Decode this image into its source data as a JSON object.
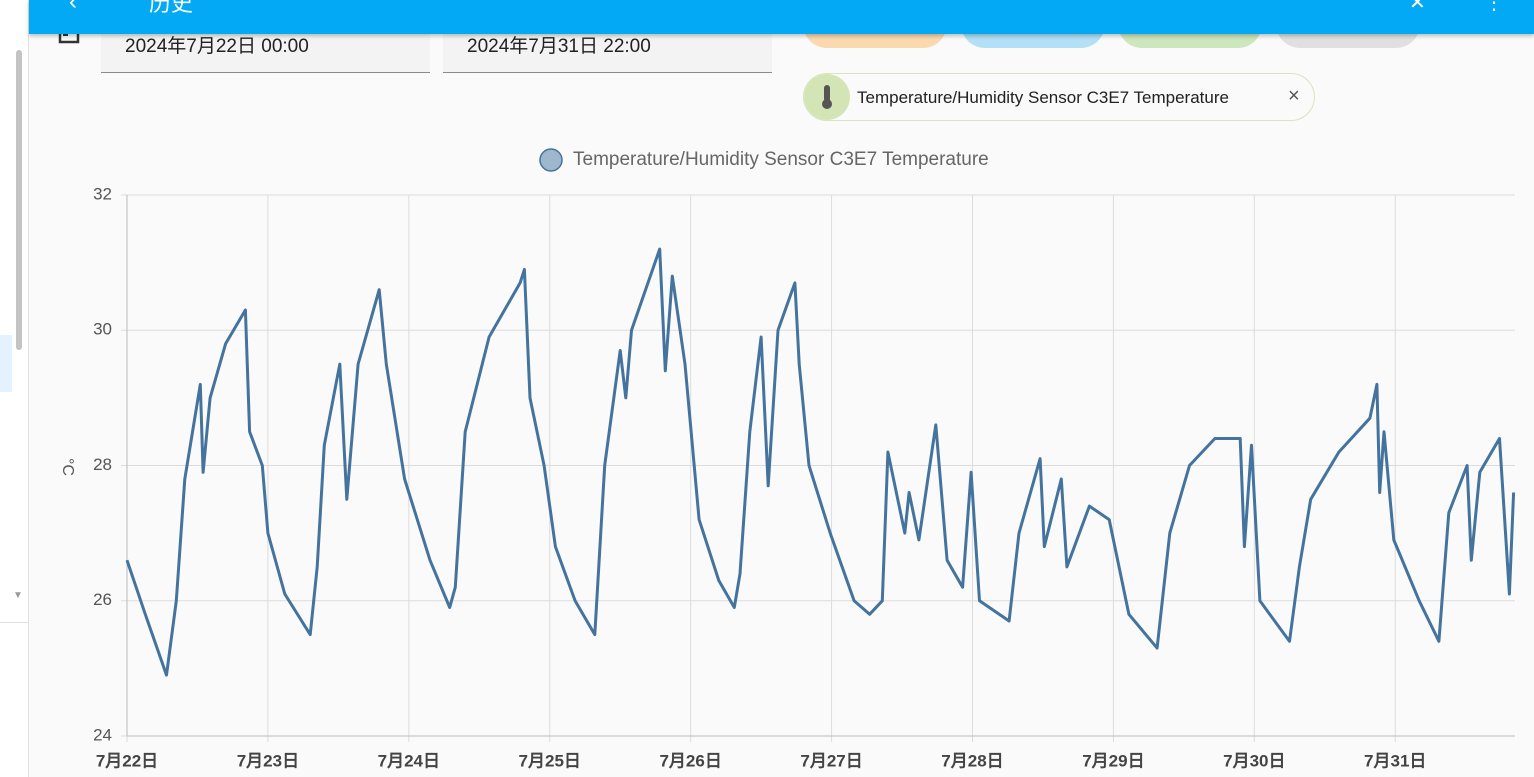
{
  "header": {
    "title": "历史"
  },
  "date_range": {
    "start": "2024年7月22日 00:00",
    "end": "2024年7月31日 22:00"
  },
  "entity_chip": {
    "label": "Temperature/Humidity Sensor C3E7 Temperature"
  },
  "chart_data": {
    "type": "line",
    "y_label": "°C",
    "x": [
      0,
      0.13,
      0.28,
      0.35,
      0.41,
      0.52,
      0.54,
      0.59,
      0.7,
      0.84,
      0.87,
      0.96,
      1.0,
      1.12,
      1.3,
      1.35,
      1.4,
      1.51,
      1.56,
      1.64,
      1.79,
      1.84,
      1.97,
      2.15,
      2.29,
      2.33,
      2.4,
      2.57,
      2.79,
      2.82,
      2.86,
      2.96,
      3.04,
      3.18,
      3.32,
      3.39,
      3.5,
      3.54,
      3.58,
      3.78,
      3.82,
      3.87,
      3.96,
      4.06,
      4.2,
      4.31,
      4.35,
      4.42,
      4.5,
      4.55,
      4.62,
      4.74,
      4.77,
      4.84,
      4.99,
      5.16,
      5.27,
      5.36,
      5.4,
      5.52,
      5.55,
      5.62,
      5.74,
      5.82,
      5.93,
      5.99,
      6.05,
      6.26,
      6.33,
      6.48,
      6.51,
      6.63,
      6.67,
      6.83,
      6.97,
      7.11,
      7.31,
      7.4,
      7.54,
      7.72,
      7.9,
      7.93,
      7.98,
      8.04,
      8.25,
      8.32,
      8.4,
      8.6,
      8.82,
      8.87,
      8.89,
      8.92,
      8.99,
      9.17,
      9.31,
      9.38,
      9.51,
      9.54,
      9.6,
      9.74,
      9.81,
      9.84
    ],
    "series": [
      {
        "name": "Temperature/Humidity Sensor C3E7 Temperature",
        "color": "#44739e",
        "values": [
          26.6,
          25.8,
          24.9,
          26.0,
          27.8,
          29.2,
          27.9,
          29.0,
          29.8,
          30.3,
          28.5,
          28.0,
          27.0,
          26.1,
          25.5,
          26.5,
          28.3,
          29.5,
          27.5,
          29.5,
          30.6,
          29.5,
          27.8,
          26.6,
          25.9,
          26.2,
          28.5,
          29.9,
          30.7,
          30.9,
          29.0,
          28.0,
          26.8,
          26.0,
          25.5,
          28.0,
          29.7,
          29.0,
          30.0,
          31.2,
          29.4,
          30.8,
          29.5,
          27.2,
          26.3,
          25.9,
          26.4,
          28.5,
          29.9,
          27.7,
          30.0,
          30.7,
          29.5,
          28.0,
          27.0,
          26.0,
          25.8,
          26.0,
          28.2,
          27.0,
          27.6,
          26.9,
          28.6,
          26.6,
          26.2,
          27.9,
          26.0,
          25.7,
          27.0,
          28.1,
          26.8,
          27.8,
          26.5,
          27.4,
          27.2,
          25.8,
          25.3,
          27.0,
          28.0,
          28.4,
          28.4,
          26.8,
          28.3,
          26.0,
          25.4,
          26.5,
          27.5,
          28.2,
          28.7,
          29.2,
          27.6,
          28.5,
          26.9,
          26.0,
          25.4,
          27.3,
          28.0,
          26.6,
          27.9,
          28.4,
          26.1,
          27.6
        ]
      }
    ],
    "xlim": [
      0,
      9.85
    ],
    "xticks": [
      {
        "value": 0,
        "label": "7月22日"
      },
      {
        "value": 1,
        "label": "7月23日"
      },
      {
        "value": 2,
        "label": "7月24日"
      },
      {
        "value": 3,
        "label": "7月25日"
      },
      {
        "value": 4,
        "label": "7月26日"
      },
      {
        "value": 5,
        "label": "7月27日"
      },
      {
        "value": 6,
        "label": "7月28日"
      },
      {
        "value": 7,
        "label": "7月29日"
      },
      {
        "value": 8,
        "label": "7月30日"
      },
      {
        "value": 9,
        "label": "7月31日"
      }
    ],
    "ylim": [
      24,
      32
    ],
    "yticks": [
      24,
      26,
      28,
      30,
      32
    ],
    "grid": true
  }
}
